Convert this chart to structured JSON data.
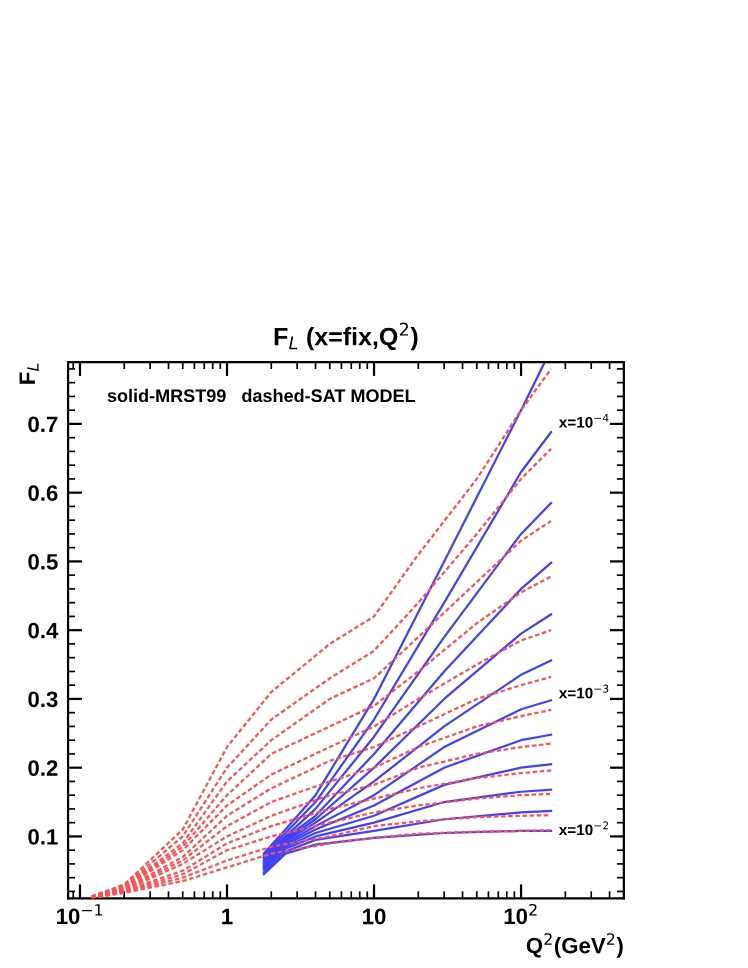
{
  "chart_data": {
    "type": "line",
    "title": "F$_{L}$ (x=fix,Q$^{2}$)",
    "xlabel": "Q$^{2}$(GeV$^{2}$)",
    "ylabel": "F$_{L}$",
    "log": "x",
    "xlim": [
      0.083,
      500
    ],
    "xticks": [
      {
        "value": 0.1,
        "label": "10$^{−1}$"
      },
      1,
      10,
      {
        "value": 100,
        "label": "10$^{2}$"
      }
    ],
    "ylim": [
      0.01,
      0.79
    ],
    "yticks": [
      0.1,
      0.2,
      0.3,
      0.4,
      0.5,
      0.6,
      0.7
    ],
    "grid": false,
    "legend": false,
    "annotations": [
      "solid-MRST99   dashed-SAT MODEL",
      "x=10$^{−4}$",
      "x=10$^{−3}$",
      "x=10$^{−2}$"
    ],
    "series": [
      {
        "color": "#ff5050",
        "line_style": "dashed",
        "x": [
          0.12,
          0.2,
          0.5,
          1,
          2,
          5,
          10,
          20,
          50,
          100,
          160
        ],
        "values": [
          0.013,
          0.03,
          0.11,
          0.23,
          0.31,
          0.38,
          0.42,
          0.51,
          0.62,
          0.72,
          0.78
        ]
      },
      {
        "color": "#ff5050",
        "line_style": "dashed",
        "x": [
          0.12,
          0.2,
          0.5,
          1,
          2,
          5,
          10,
          20,
          50,
          100,
          160
        ],
        "values": [
          0.013,
          0.028,
          0.1,
          0.2,
          0.27,
          0.33,
          0.37,
          0.44,
          0.54,
          0.62,
          0.664
        ]
      },
      {
        "color": "#ff5050",
        "line_style": "dashed",
        "x": [
          0.12,
          0.2,
          0.5,
          1,
          2,
          5,
          10,
          20,
          50,
          100,
          160
        ],
        "values": [
          0.012,
          0.027,
          0.09,
          0.18,
          0.24,
          0.3,
          0.33,
          0.39,
          0.47,
          0.53,
          0.559
        ]
      },
      {
        "color": "#ff5050",
        "line_style": "dashed",
        "x": [
          0.12,
          0.2,
          0.5,
          1,
          2,
          5,
          10,
          20,
          50,
          100,
          160
        ],
        "values": [
          0.012,
          0.026,
          0.085,
          0.16,
          0.22,
          0.26,
          0.29,
          0.34,
          0.41,
          0.455,
          0.478
        ]
      },
      {
        "color": "#ff5050",
        "line_style": "dashed",
        "x": [
          0.12,
          0.2,
          0.5,
          1,
          2,
          5,
          10,
          20,
          50,
          100,
          160
        ],
        "values": [
          0.012,
          0.025,
          0.08,
          0.145,
          0.19,
          0.23,
          0.26,
          0.3,
          0.35,
          0.385,
          0.4
        ]
      },
      {
        "color": "#ff5050",
        "line_style": "dashed",
        "x": [
          0.12,
          0.2,
          0.5,
          1,
          2,
          5,
          10,
          20,
          50,
          100,
          160
        ],
        "values": [
          0.012,
          0.024,
          0.07,
          0.13,
          0.17,
          0.21,
          0.23,
          0.26,
          0.3,
          0.32,
          0.332
        ]
      },
      {
        "color": "#ff5050",
        "line_style": "dashed",
        "x": [
          0.12,
          0.2,
          0.5,
          1,
          2,
          5,
          10,
          20,
          50,
          100,
          160
        ],
        "values": [
          0.011,
          0.023,
          0.065,
          0.115,
          0.15,
          0.18,
          0.2,
          0.23,
          0.26,
          0.275,
          0.284
        ]
      },
      {
        "color": "#ff5050",
        "line_style": "dashed",
        "x": [
          0.12,
          0.2,
          0.5,
          1,
          2,
          5,
          10,
          20,
          50,
          100,
          160
        ],
        "values": [
          0.011,
          0.022,
          0.06,
          0.1,
          0.13,
          0.16,
          0.175,
          0.2,
          0.22,
          0.23,
          0.235
        ]
      },
      {
        "color": "#ff5050",
        "line_style": "dashed",
        "x": [
          0.12,
          0.2,
          0.5,
          1,
          2,
          5,
          10,
          20,
          50,
          100,
          160
        ],
        "values": [
          0.011,
          0.021,
          0.05,
          0.09,
          0.115,
          0.14,
          0.155,
          0.17,
          0.185,
          0.192,
          0.196
        ]
      },
      {
        "color": "#ff5050",
        "line_style": "dashed",
        "x": [
          0.12,
          0.2,
          0.5,
          1,
          2,
          5,
          10,
          20,
          50,
          100,
          160
        ],
        "values": [
          0.011,
          0.02,
          0.045,
          0.08,
          0.1,
          0.12,
          0.135,
          0.145,
          0.155,
          0.16,
          0.162
        ]
      },
      {
        "color": "#ff5050",
        "line_style": "dashed",
        "x": [
          0.12,
          0.2,
          0.5,
          1,
          2,
          5,
          10,
          20,
          50,
          100,
          160
        ],
        "values": [
          0.011,
          0.019,
          0.04,
          0.065,
          0.085,
          0.1,
          0.115,
          0.122,
          0.128,
          0.13,
          0.131
        ]
      },
      {
        "color": "#ff5050",
        "line_style": "dashed",
        "x": [
          0.12,
          0.2,
          0.5,
          1,
          2,
          5,
          10,
          20,
          50,
          100,
          160
        ],
        "values": [
          0.01,
          0.018,
          0.035,
          0.055,
          0.075,
          0.09,
          0.098,
          0.104,
          0.107,
          0.108,
          0.109
        ]
      },
      {
        "color": "#4040ff",
        "line_style": "solid",
        "x": [
          1.78,
          2.5,
          4,
          10,
          30,
          100,
          145
        ],
        "values": [
          0.075,
          0.11,
          0.16,
          0.3,
          0.5,
          0.72,
          0.79
        ]
      },
      {
        "color": "#4040ff",
        "line_style": "solid",
        "x": [
          1.78,
          2.5,
          4,
          10,
          30,
          100,
          160
        ],
        "values": [
          0.072,
          0.105,
          0.15,
          0.27,
          0.44,
          0.63,
          0.688
        ]
      },
      {
        "color": "#4040ff",
        "line_style": "solid",
        "x": [
          1.78,
          2.5,
          4,
          10,
          30,
          100,
          160
        ],
        "values": [
          0.07,
          0.1,
          0.14,
          0.245,
          0.39,
          0.54,
          0.585
        ]
      },
      {
        "color": "#4040ff",
        "line_style": "solid",
        "x": [
          1.78,
          2.5,
          4,
          10,
          30,
          100,
          160
        ],
        "values": [
          0.068,
          0.098,
          0.13,
          0.22,
          0.34,
          0.46,
          0.498
        ]
      },
      {
        "color": "#4040ff",
        "line_style": "solid",
        "x": [
          1.78,
          2.5,
          4,
          10,
          30,
          100,
          160
        ],
        "values": [
          0.065,
          0.095,
          0.125,
          0.2,
          0.3,
          0.395,
          0.423
        ]
      },
      {
        "color": "#4040ff",
        "line_style": "solid",
        "x": [
          1.78,
          2.5,
          4,
          10,
          30,
          100,
          160
        ],
        "values": [
          0.062,
          0.093,
          0.12,
          0.18,
          0.26,
          0.335,
          0.356
        ]
      },
      {
        "color": "#4040ff",
        "line_style": "solid",
        "x": [
          1.78,
          2.5,
          4,
          10,
          30,
          100,
          160
        ],
        "values": [
          0.06,
          0.09,
          0.115,
          0.16,
          0.23,
          0.285,
          0.298
        ]
      },
      {
        "color": "#4040ff",
        "line_style": "solid",
        "x": [
          1.78,
          2.5,
          4,
          10,
          30,
          100,
          160
        ],
        "values": [
          0.057,
          0.088,
          0.11,
          0.145,
          0.2,
          0.24,
          0.248
        ]
      },
      {
        "color": "#4040ff",
        "line_style": "solid",
        "x": [
          1.78,
          2.5,
          4,
          10,
          30,
          100,
          160
        ],
        "values": [
          0.055,
          0.085,
          0.105,
          0.13,
          0.175,
          0.2,
          0.205
        ]
      },
      {
        "color": "#4040ff",
        "line_style": "solid",
        "x": [
          1.78,
          2.5,
          4,
          10,
          30,
          100,
          160
        ],
        "values": [
          0.052,
          0.082,
          0.1,
          0.12,
          0.15,
          0.165,
          0.168
        ]
      },
      {
        "color": "#4040ff",
        "line_style": "solid",
        "x": [
          1.78,
          2.5,
          4,
          10,
          30,
          100,
          160
        ],
        "values": [
          0.048,
          0.078,
          0.095,
          0.108,
          0.125,
          0.135,
          0.137
        ]
      },
      {
        "color": "#4040ff",
        "line_style": "solid",
        "x": [
          1.78,
          2.5,
          4,
          10,
          30,
          100,
          160
        ],
        "values": [
          0.045,
          0.075,
          0.088,
          0.098,
          0.105,
          0.108,
          0.108
        ]
      }
    ]
  }
}
